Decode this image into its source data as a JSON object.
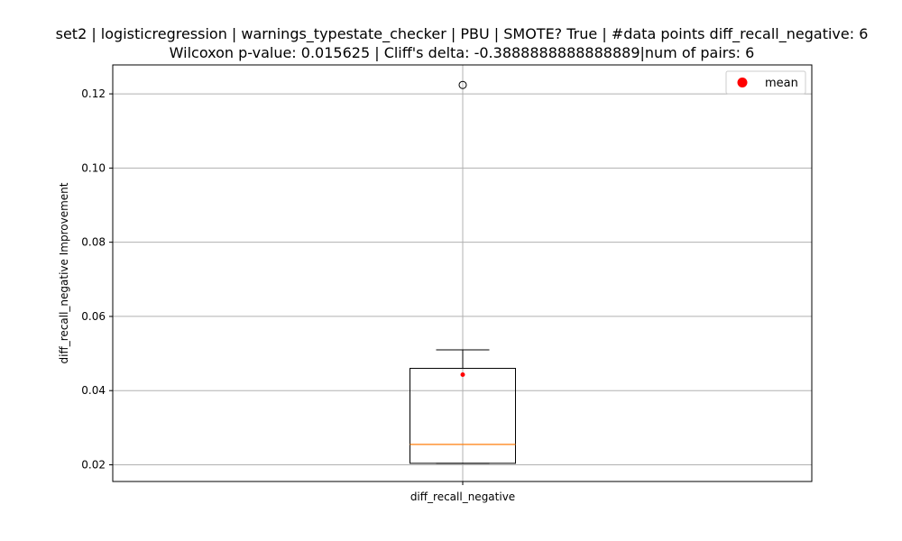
{
  "chart_data": {
    "type": "box",
    "title_line1": "set2 | logisticregression | warnings_typestate_checker | PBU | SMOTE? True | #data points diff_recall_negative: 6",
    "title_line2": "Wilcoxon p-value: 0.015625 | Cliff's delta: -0.3888888888888889|num of pairs: 6",
    "xlabel": "",
    "ylabel": "diff_recall_negative Improvement",
    "categories": [
      "diff_recall_negative"
    ],
    "ylim": [
      0.0155,
      0.1278
    ],
    "yticks": [
      0.02,
      0.04,
      0.06,
      0.08,
      0.1,
      0.12
    ],
    "ytick_labels": [
      "0.02",
      "0.04",
      "0.06",
      "0.08",
      "0.10",
      "0.12"
    ],
    "grid": true,
    "legend": {
      "position": "top-right",
      "entries": [
        {
          "label": "mean",
          "color": "#ff0000"
        }
      ]
    },
    "series": [
      {
        "name": "diff_recall_negative",
        "whisker_low": 0.0204,
        "q1": 0.0204,
        "median": 0.0255,
        "q3": 0.046,
        "whisker_high": 0.051,
        "mean": 0.0443,
        "outliers": [
          0.1224
        ]
      }
    ],
    "colors": {
      "median": "#ff7f0e",
      "mean": "#ff0000",
      "box": "#000000",
      "grid": "#b0b0b0"
    }
  }
}
